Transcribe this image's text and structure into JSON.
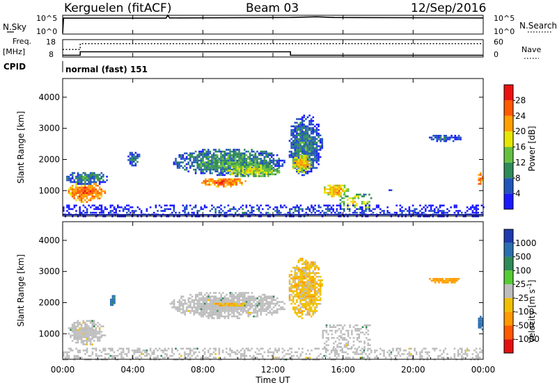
{
  "header": {
    "site": "Kerguelen (fitACF)",
    "beam": "Beam 03",
    "date": "12/Sep/2016"
  },
  "strips": {
    "nsky_label": "N.Sky",
    "nsky_ticks": [
      "10^5",
      "10^0"
    ],
    "nsearch_label": "N.Search",
    "nsearch_ticks": [
      "10^5",
      "10^0"
    ],
    "freq_label_1": "Freq.",
    "freq_label_2": "[MHz]",
    "freq_ticks": [
      "18",
      "8"
    ],
    "nave_label": "Nave",
    "nave_ticks": [
      "60",
      "0"
    ],
    "cpid_label": "CPID",
    "cpid_value": "normal (fast) 151"
  },
  "time_axis": {
    "label": "Time UT",
    "ticks": [
      "00:00",
      "04:00",
      "08:00",
      "12:00",
      "16:00",
      "20:00",
      "00:00"
    ]
  },
  "colors": {
    "power": [
      "#1a1aff",
      "#2255bb",
      "#2e8b57",
      "#66c040",
      "#e6e600",
      "#ffa000",
      "#ff5a00",
      "#ee1111"
    ],
    "velocity_pos": [
      "#1e3ab0",
      "#2a6fb0",
      "#2e8b57",
      "#55cc33"
    ],
    "velocity_neg": [
      "#f0c000",
      "#ff9a00",
      "#ff5a00",
      "#e61010"
    ],
    "ground": "#bdbdbd",
    "frame": "#000000"
  },
  "chart_data": [
    {
      "type": "heatmap",
      "title": "",
      "xlabel": "Time UT",
      "ylabel": "Slant Range [km]",
      "xlim": [
        "00:00",
        "24:00"
      ],
      "ylim": [
        180,
        4600
      ],
      "yticks": [
        "1000",
        "2000",
        "3000",
        "4000"
      ],
      "colorbar": {
        "label": "Power [dB]",
        "range": [
          0,
          32
        ],
        "ticks": [
          "4",
          "8",
          "12",
          "16",
          "20",
          "24",
          "28"
        ]
      },
      "echo_regions": [
        {
          "t0": 0.2,
          "t1": 2.4,
          "r0": 650,
          "r1": 1300,
          "power_db": 26
        },
        {
          "t0": 0.1,
          "t1": 2.6,
          "r0": 1200,
          "r1": 1650,
          "power_db": 10
        },
        {
          "t0": 3.6,
          "t1": 4.4,
          "r0": 1800,
          "r1": 2300,
          "power_db": 8
        },
        {
          "t0": 6.2,
          "t1": 12.7,
          "r0": 1500,
          "r1": 2400,
          "power_db": 11
        },
        {
          "t0": 7.8,
          "t1": 10.5,
          "r0": 1150,
          "r1": 1450,
          "power_db": 26
        },
        {
          "t0": 9.0,
          "t1": 12.4,
          "r0": 1450,
          "r1": 1900,
          "power_db": 17
        },
        {
          "t0": 12.8,
          "t1": 14.8,
          "r0": 1500,
          "r1": 3500,
          "power_db": 9
        },
        {
          "t0": 13.0,
          "t1": 14.2,
          "r0": 1600,
          "r1": 2200,
          "power_db": 21
        },
        {
          "t0": 14.8,
          "t1": 16.3,
          "r0": 800,
          "r1": 1250,
          "power_db": 22
        },
        {
          "t0": 15.8,
          "t1": 17.6,
          "r0": 400,
          "r1": 900,
          "power_db": 18
        },
        {
          "t0": 18.5,
          "t1": 18.9,
          "r0": 1000,
          "r1": 1100,
          "power_db": 8
        },
        {
          "t0": 20.8,
          "t1": 22.8,
          "r0": 2600,
          "r1": 2850,
          "power_db": 7
        },
        {
          "t0": 23.6,
          "t1": 24.0,
          "r0": 1100,
          "r1": 1650,
          "power_db": 24
        },
        {
          "t0": 0.0,
          "t1": 24.0,
          "r0": 180,
          "r1": 550,
          "power_db": 6
        }
      ]
    },
    {
      "type": "heatmap",
      "title": "",
      "xlabel": "Time UT",
      "ylabel": "Slant Range [km]",
      "xlim": [
        "00:00",
        "24:00"
      ],
      "ylim": [
        180,
        4600
      ],
      "yticks": [
        "1000",
        "2000",
        "3000",
        "4000"
      ],
      "colorbar": {
        "label": "Velocity [m s^-1]",
        "ticks": [
          "1000",
          "500",
          "100",
          "25",
          "-25",
          "-100",
          "-500",
          "-1000"
        ]
      },
      "echo_regions": [
        {
          "t0": 0.2,
          "t1": 2.4,
          "r0": 650,
          "r1": 1500,
          "velocity": 0,
          "ground_scatter": true
        },
        {
          "t0": 2.6,
          "t1": 3.0,
          "r0": 1900,
          "r1": 2300,
          "velocity": 150
        },
        {
          "t0": 6.0,
          "t1": 12.8,
          "r0": 1500,
          "r1": 2400,
          "velocity": 0,
          "ground_scatter": true
        },
        {
          "t0": 8.5,
          "t1": 10.5,
          "r0": 1900,
          "r1": 2050,
          "velocity": -80
        },
        {
          "t0": 12.8,
          "t1": 14.8,
          "r0": 1500,
          "r1": 3500,
          "velocity": -60
        },
        {
          "t0": 14.8,
          "t1": 17.5,
          "r0": 500,
          "r1": 1300,
          "velocity": 0,
          "ground_scatter": true
        },
        {
          "t0": 20.8,
          "t1": 22.8,
          "r0": 2650,
          "r1": 2850,
          "velocity": -150
        },
        {
          "t0": 23.6,
          "t1": 24.0,
          "r0": 1100,
          "r1": 1750,
          "velocity": 200
        },
        {
          "t0": 0.0,
          "t1": 24.0,
          "r0": 180,
          "r1": 550,
          "velocity": 0,
          "ground_scatter": true
        }
      ]
    }
  ],
  "series": {
    "nsky": [
      {
        "t": 0.0,
        "v": 0.05
      },
      {
        "t": 0.05,
        "v": 0.85
      },
      {
        "t": 5.9,
        "v": 0.85
      },
      {
        "t": 6.0,
        "v": 1.0
      },
      {
        "t": 6.1,
        "v": 0.86
      },
      {
        "t": 13.0,
        "v": 0.88
      },
      {
        "t": 14.5,
        "v": 0.92
      },
      {
        "t": 15.5,
        "v": 0.88
      },
      {
        "t": 24.0,
        "v": 0.86
      }
    ],
    "frequency_mhz": [
      {
        "t": 0.0,
        "v": 9.0
      },
      {
        "t": 1.0,
        "v": 9.0
      },
      {
        "t": 1.0,
        "v": 11.0
      },
      {
        "t": 13.0,
        "v": 11.0
      },
      {
        "t": 13.0,
        "v": 9.0
      },
      {
        "t": 24.0,
        "v": 9.0
      }
    ],
    "nave": [
      {
        "t": 0.0,
        "v": 26
      },
      {
        "t": 1.0,
        "v": 26
      },
      {
        "t": 1.0,
        "v": 46
      },
      {
        "t": 24.0,
        "v": 46
      }
    ]
  }
}
